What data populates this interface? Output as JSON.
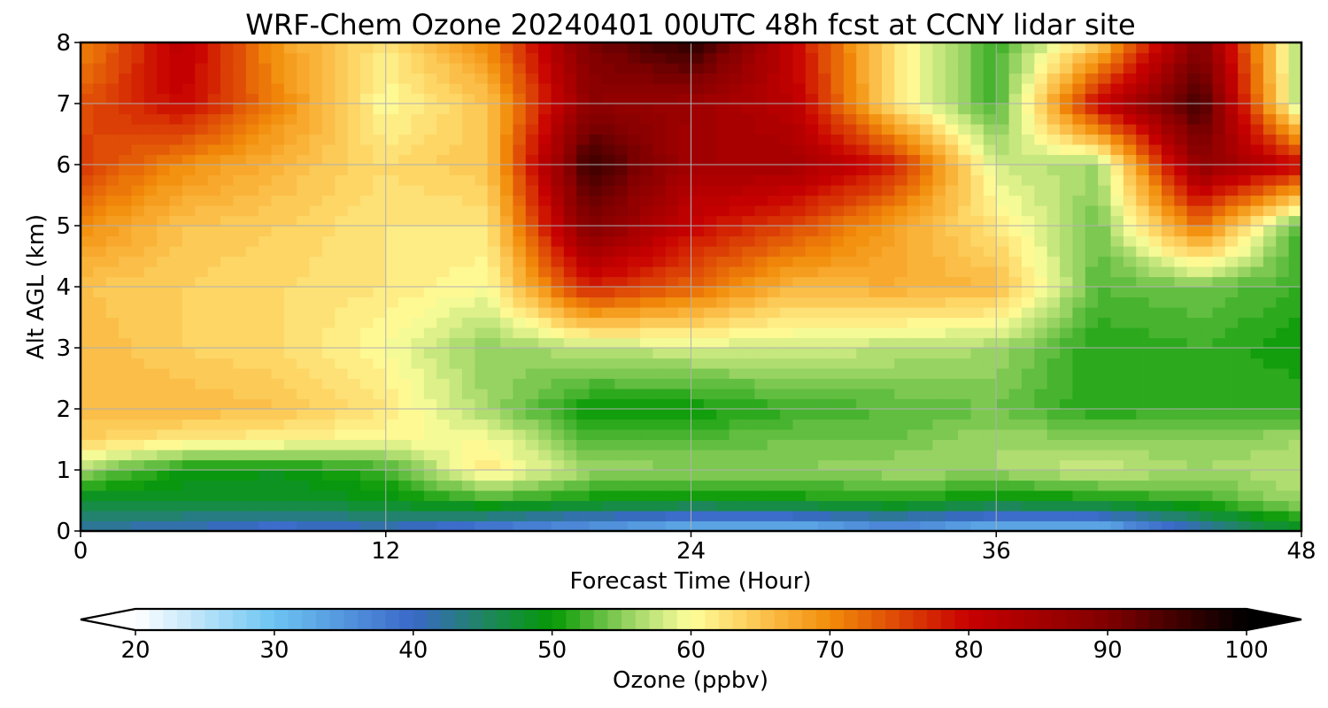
{
  "chart_data": {
    "type": "heatmap",
    "title": "WRF-Chem Ozone  20240401 00UTC 48h fcst at CCNY lidar site",
    "xlabel": "Forecast Time (Hour)",
    "ylabel": "Alt AGL (km)",
    "xlim": [
      0,
      48
    ],
    "ylim": [
      0,
      8
    ],
    "x_ticks": [
      0,
      12,
      24,
      36,
      48
    ],
    "y_ticks": [
      0,
      1,
      2,
      3,
      4,
      5,
      6,
      7,
      8
    ],
    "grid": true,
    "x_hours": [
      0,
      4,
      8,
      12,
      16,
      20,
      24,
      28,
      32,
      36,
      40,
      44,
      48
    ],
    "y_km": [
      0,
      0.5,
      1,
      1.5,
      2,
      3,
      4,
      5,
      6,
      7,
      8
    ],
    "ozone_ppbv": [
      [
        42,
        40,
        38,
        40,
        36,
        33,
        30,
        30,
        34,
        30,
        30,
        40,
        48
      ],
      [
        47,
        48,
        48,
        49,
        52,
        50,
        49,
        50,
        51,
        49,
        50,
        52,
        56
      ],
      [
        56,
        50,
        49,
        52,
        62,
        56,
        55,
        55,
        56,
        56,
        58,
        56,
        57
      ],
      [
        64,
        62,
        61,
        60,
        60,
        53,
        53,
        54,
        54,
        56,
        55,
        55,
        56
      ],
      [
        66,
        66,
        65,
        62,
        56,
        50,
        50,
        52,
        53,
        54,
        51,
        52,
        52
      ],
      [
        66,
        64,
        63,
        60,
        55,
        57,
        58,
        58,
        57,
        56,
        51,
        52,
        50
      ],
      [
        65,
        64,
        63,
        62,
        60,
        78,
        73,
        66,
        67,
        66,
        53,
        54,
        52
      ],
      [
        70,
        65,
        64,
        62,
        62,
        90,
        80,
        75,
        68,
        62,
        54,
        72,
        52
      ],
      [
        76,
        70,
        66,
        63,
        65,
        96,
        85,
        85,
        78,
        58,
        56,
        88,
        80
      ],
      [
        74,
        80,
        70,
        60,
        65,
        88,
        86,
        82,
        62,
        52,
        80,
        95,
        55
      ],
      [
        70,
        82,
        68,
        62,
        70,
        90,
        97,
        80,
        62,
        52,
        64,
        90,
        55
      ]
    ],
    "colorbar": {
      "label": "Ozone  (ppbv)",
      "min": 20,
      "max": 100,
      "step": 1,
      "ticks": [
        20,
        30,
        40,
        50,
        60,
        70,
        80,
        90,
        100
      ],
      "extend": "both",
      "color_stops": [
        [
          20,
          "#ffffff"
        ],
        [
          30,
          "#6cc4f2"
        ],
        [
          40,
          "#3a68c8"
        ],
        [
          46,
          "#1a8a50"
        ],
        [
          50,
          "#059905"
        ],
        [
          56,
          "#a4d86a"
        ],
        [
          60,
          "#ffff9c"
        ],
        [
          66,
          "#fbb840"
        ],
        [
          70,
          "#f28c0a"
        ],
        [
          80,
          "#c80000"
        ],
        [
          90,
          "#800000"
        ],
        [
          100,
          "#000000"
        ]
      ]
    }
  }
}
